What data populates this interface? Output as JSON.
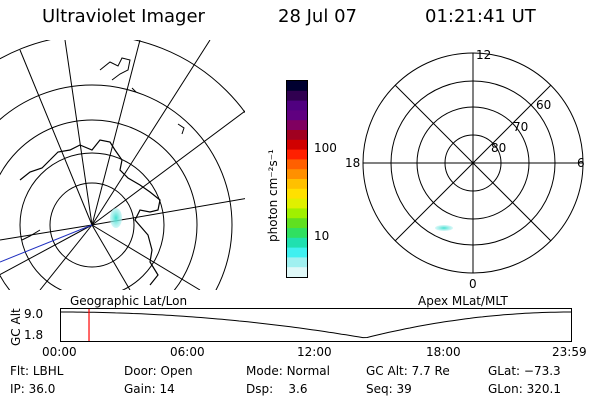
{
  "header": {
    "instrument": "Ultraviolet Imager",
    "date": "28 Jul 07",
    "time": "01:21:41 UT"
  },
  "colorbar": {
    "unit_label": "photon cm⁻²s⁻¹",
    "ticks": [
      "100",
      "10"
    ]
  },
  "polar_plot": {
    "lat_labels": [
      "60",
      "70",
      "80"
    ],
    "mlt_labels": [
      "12",
      "18",
      "6",
      "0"
    ]
  },
  "timeline": {
    "left_title": "Geographic Lat/Lon",
    "right_title": "Apex MLat/MLT",
    "axis_label": "GC Alt",
    "y_ticks": [
      "9.0",
      "1.8"
    ],
    "x_ticks": [
      "00:00",
      "06:00",
      "12:00",
      "18:00",
      "23:59"
    ],
    "y_range": [
      1.8,
      9.0
    ],
    "curve_min_hour": 14.3,
    "marker_hour": 1.36,
    "marker_color": "#ff0000"
  },
  "status": {
    "row1": [
      {
        "label": "Flt:",
        "value": "LBHL"
      },
      {
        "label": "Door:",
        "value": "Open"
      },
      {
        "label": "Mode:",
        "value": "Normal"
      },
      {
        "label": "GC Alt:",
        "value": "7.7 Re"
      },
      {
        "label": "GLat:",
        "value": "−73.3"
      }
    ],
    "row2": [
      {
        "label": "IP:",
        "value": "36.0"
      },
      {
        "label": "Gain:",
        "value": "14"
      },
      {
        "label": "Dsp:",
        "value": "3.6"
      },
      {
        "label": "Seq:",
        "value": "39"
      },
      {
        "label": "GLon:",
        "value": "320.1"
      }
    ]
  },
  "colors": {
    "aurora": "#40e0d0",
    "aurora_light": "#b0f0f0",
    "line": "#000000",
    "marker": "#ff0000",
    "colorbar": [
      "#000030",
      "#300050",
      "#500080",
      "#600080",
      "#800060",
      "#a00020",
      "#d00000",
      "#ff2000",
      "#ff6000",
      "#ff9000",
      "#ffc000",
      "#ffe000",
      "#e0f000",
      "#a0f000",
      "#60e020",
      "#30e060",
      "#20e0b0",
      "#40f0f0",
      "#a0f0f0",
      "#e0f8f8"
    ]
  }
}
